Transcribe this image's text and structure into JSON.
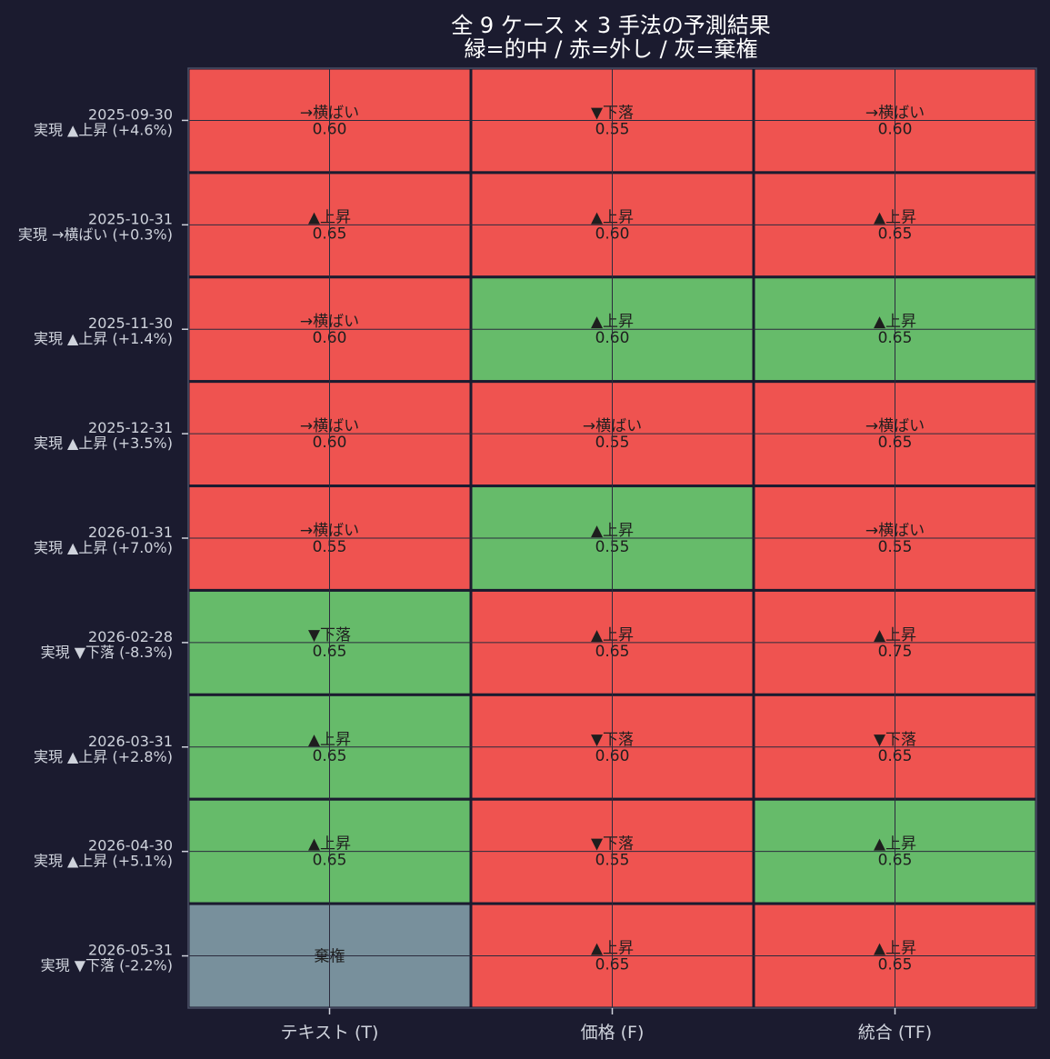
{
  "chart_data": {
    "type": "heatmap",
    "title": "全 9 ケース × 3 手法の予測結果",
    "subtitle": "緑=的中 / 赤=外し / 灰=棄権",
    "columns": [
      "テキスト (T)",
      "価格 (F)",
      "統合 (TF)"
    ],
    "rows": [
      {
        "date": "2025-09-30",
        "actual": "実現 ▲上昇 (+4.6%)",
        "cells": [
          {
            "pred": "→横ばい",
            "conf": "0.60",
            "result": "miss"
          },
          {
            "pred": "▼下落",
            "conf": "0.55",
            "result": "miss"
          },
          {
            "pred": "→横ばい",
            "conf": "0.60",
            "result": "miss"
          }
        ]
      },
      {
        "date": "2025-10-31",
        "actual": "実現 →横ばい (+0.3%)",
        "cells": [
          {
            "pred": "▲上昇",
            "conf": "0.65",
            "result": "miss"
          },
          {
            "pred": "▲上昇",
            "conf": "0.60",
            "result": "miss"
          },
          {
            "pred": "▲上昇",
            "conf": "0.65",
            "result": "miss"
          }
        ]
      },
      {
        "date": "2025-11-30",
        "actual": "実現 ▲上昇 (+1.4%)",
        "cells": [
          {
            "pred": "→横ばい",
            "conf": "0.60",
            "result": "miss"
          },
          {
            "pred": "▲上昇",
            "conf": "0.60",
            "result": "hit"
          },
          {
            "pred": "▲上昇",
            "conf": "0.65",
            "result": "hit"
          }
        ]
      },
      {
        "date": "2025-12-31",
        "actual": "実現 ▲上昇 (+3.5%)",
        "cells": [
          {
            "pred": "→横ばい",
            "conf": "0.60",
            "result": "miss"
          },
          {
            "pred": "→横ばい",
            "conf": "0.55",
            "result": "miss"
          },
          {
            "pred": "→横ばい",
            "conf": "0.65",
            "result": "miss"
          }
        ]
      },
      {
        "date": "2026-01-31",
        "actual": "実現 ▲上昇 (+7.0%)",
        "cells": [
          {
            "pred": "→横ばい",
            "conf": "0.55",
            "result": "miss"
          },
          {
            "pred": "▲上昇",
            "conf": "0.55",
            "result": "hit"
          },
          {
            "pred": "→横ばい",
            "conf": "0.55",
            "result": "miss"
          }
        ]
      },
      {
        "date": "2026-02-28",
        "actual": "実現 ▼下落 (-8.3%)",
        "cells": [
          {
            "pred": "▼下落",
            "conf": "0.65",
            "result": "hit"
          },
          {
            "pred": "▲上昇",
            "conf": "0.65",
            "result": "miss"
          },
          {
            "pred": "▲上昇",
            "conf": "0.75",
            "result": "miss"
          }
        ]
      },
      {
        "date": "2026-03-31",
        "actual": "実現 ▲上昇 (+2.8%)",
        "cells": [
          {
            "pred": "▲上昇",
            "conf": "0.65",
            "result": "hit"
          },
          {
            "pred": "▼下落",
            "conf": "0.60",
            "result": "miss"
          },
          {
            "pred": "▼下落",
            "conf": "0.65",
            "result": "miss"
          }
        ]
      },
      {
        "date": "2026-04-30",
        "actual": "実現 ▲上昇 (+5.1%)",
        "cells": [
          {
            "pred": "▲上昇",
            "conf": "0.65",
            "result": "hit"
          },
          {
            "pred": "▼下落",
            "conf": "0.55",
            "result": "miss"
          },
          {
            "pred": "▲上昇",
            "conf": "0.65",
            "result": "hit"
          }
        ]
      },
      {
        "date": "2026-05-31",
        "actual": "実現 ▼下落 (-2.2%)",
        "cells": [
          {
            "pred": "棄権",
            "conf": "",
            "result": "abstain"
          },
          {
            "pred": "▲上昇",
            "conf": "0.65",
            "result": "miss"
          },
          {
            "pred": "▲上昇",
            "conf": "0.65",
            "result": "miss"
          }
        ]
      }
    ],
    "colors": {
      "hit": "#66bb6a",
      "miss": "#ef5350",
      "abstain": "#78909c",
      "background": "#1b1b2f",
      "text": "#ffffff",
      "label": "#cfd3dc",
      "cell_text": "#1e1e1e"
    },
    "grid": true
  }
}
